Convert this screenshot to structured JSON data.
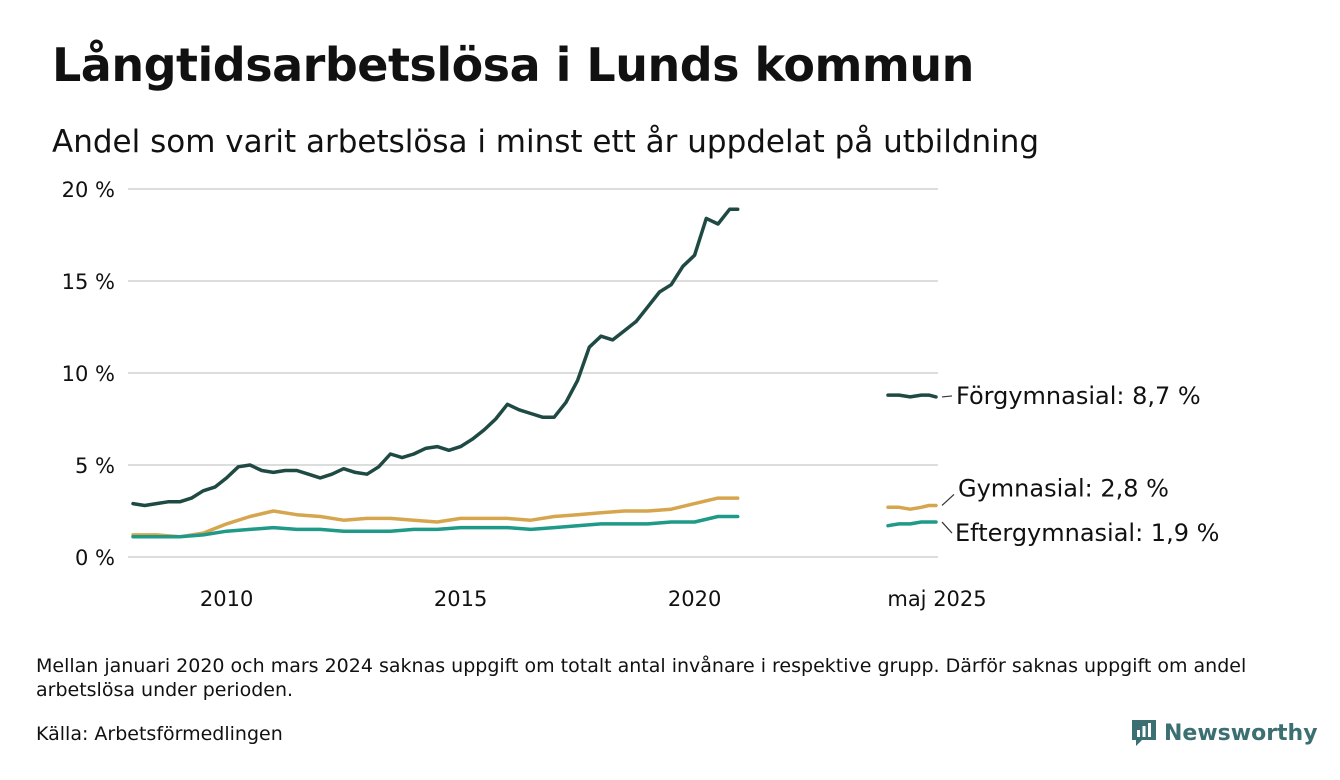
{
  "title": "Långtidsarbetslösa i Lunds kommun",
  "subtitle": "Andel som varit arbetslösa i minst ett år uppdelat på utbildning",
  "note": "Mellan januari 2020 och mars 2024 saknas uppgift om totalt antal invånare i respektive grupp. Därför saknas uppgift om andel arbetslösa under perioden.",
  "source": "Källa: Arbetsförmedlingen",
  "brand": "Newsworthy",
  "colors": {
    "forgymnasial": "#1f4a43",
    "gymnasial": "#d6a64f",
    "eftergymnasial": "#1f9a89",
    "grid": "#dddddd",
    "brand": "#3b6f72"
  },
  "chart_data": {
    "type": "line",
    "title": "Långtidsarbetslösa i Lunds kommun",
    "subtitle": "Andel som varit arbetslösa i minst ett år uppdelat på utbildning",
    "xlabel": "",
    "ylabel": "",
    "ylim": [
      0,
      20
    ],
    "yticks": [
      0,
      5,
      10,
      15,
      20
    ],
    "ytick_labels": [
      "0 %",
      "5 %",
      "10 %",
      "15 %",
      "20 %"
    ],
    "xticks": [
      2010,
      2015,
      2020
    ],
    "xtick_labels": [
      "2010",
      "2015",
      "2020"
    ],
    "late_tick_label": "maj 2025",
    "grid": true,
    "legend": "end-labels",
    "series": [
      {
        "name": "Förgymnasial",
        "end_label": "Förgymnasial: 8,7 %",
        "color": "#1f4a43",
        "segment1": {
          "x": [
            2008.0,
            2008.25,
            2008.5,
            2008.75,
            2009.0,
            2009.25,
            2009.5,
            2009.75,
            2010.0,
            2010.25,
            2010.5,
            2010.75,
            2011.0,
            2011.25,
            2011.5,
            2011.75,
            2012.0,
            2012.25,
            2012.5,
            2012.75,
            2013.0,
            2013.25,
            2013.5,
            2013.75,
            2014.0,
            2014.25,
            2014.5,
            2014.75,
            2015.0,
            2015.25,
            2015.5,
            2015.75,
            2016.0,
            2016.25,
            2016.5,
            2016.75,
            2017.0,
            2017.25,
            2017.5,
            2017.75,
            2018.0,
            2018.25,
            2018.5,
            2018.75,
            2019.0,
            2019.25,
            2019.5,
            2019.75,
            2020.0,
            2020.25,
            2020.5,
            2020.75,
            2020.92
          ],
          "y": [
            2.9,
            2.8,
            2.9,
            3.0,
            3.0,
            3.2,
            3.6,
            3.8,
            4.3,
            4.9,
            5.0,
            4.7,
            4.6,
            4.7,
            4.7,
            4.5,
            4.3,
            4.5,
            4.8,
            4.6,
            4.5,
            4.9,
            5.6,
            5.4,
            5.6,
            5.9,
            6.0,
            5.8,
            6.0,
            6.4,
            6.9,
            7.5,
            8.3,
            8.0,
            7.8,
            7.6,
            7.6,
            8.4,
            9.6,
            11.4,
            12.0,
            11.8,
            12.3,
            12.8,
            13.6,
            14.4,
            14.8,
            15.8,
            16.4,
            18.4,
            18.1,
            18.9,
            18.9
          ]
        },
        "segment2": {
          "x": [
            2024.25,
            2024.5,
            2024.75,
            2025.0,
            2025.17,
            2025.33
          ],
          "y": [
            8.8,
            8.8,
            8.7,
            8.8,
            8.8,
            8.7
          ]
        }
      },
      {
        "name": "Gymnasial",
        "end_label": "Gymnasial: 2,8 %",
        "color": "#d6a64f",
        "segment1": {
          "x": [
            2008.0,
            2008.5,
            2009.0,
            2009.5,
            2010.0,
            2010.5,
            2011.0,
            2011.5,
            2012.0,
            2012.5,
            2013.0,
            2013.5,
            2014.0,
            2014.5,
            2015.0,
            2015.5,
            2016.0,
            2016.5,
            2017.0,
            2017.5,
            2018.0,
            2018.5,
            2019.0,
            2019.5,
            2020.0,
            2020.5,
            2020.92
          ],
          "y": [
            1.2,
            1.2,
            1.1,
            1.3,
            1.8,
            2.2,
            2.5,
            2.3,
            2.2,
            2.0,
            2.1,
            2.1,
            2.0,
            1.9,
            2.1,
            2.1,
            2.1,
            2.0,
            2.2,
            2.3,
            2.4,
            2.5,
            2.5,
            2.6,
            2.9,
            3.2,
            3.2
          ]
        },
        "segment2": {
          "x": [
            2024.25,
            2024.5,
            2024.75,
            2025.0,
            2025.17,
            2025.33
          ],
          "y": [
            2.7,
            2.7,
            2.6,
            2.7,
            2.8,
            2.8
          ]
        }
      },
      {
        "name": "Eftergymnasial",
        "end_label": "Eftergymnasial: 1,9 %",
        "color": "#1f9a89",
        "segment1": {
          "x": [
            2008.0,
            2008.5,
            2009.0,
            2009.5,
            2010.0,
            2010.5,
            2011.0,
            2011.5,
            2012.0,
            2012.5,
            2013.0,
            2013.5,
            2014.0,
            2014.5,
            2015.0,
            2015.5,
            2016.0,
            2016.5,
            2017.0,
            2017.5,
            2018.0,
            2018.5,
            2019.0,
            2019.5,
            2020.0,
            2020.5,
            2020.92
          ],
          "y": [
            1.1,
            1.1,
            1.1,
            1.2,
            1.4,
            1.5,
            1.6,
            1.5,
            1.5,
            1.4,
            1.4,
            1.4,
            1.5,
            1.5,
            1.6,
            1.6,
            1.6,
            1.5,
            1.6,
            1.7,
            1.8,
            1.8,
            1.8,
            1.9,
            1.9,
            2.2,
            2.2
          ]
        },
        "segment2": {
          "x": [
            2024.25,
            2024.5,
            2024.75,
            2025.0,
            2025.17,
            2025.33
          ],
          "y": [
            1.7,
            1.8,
            1.8,
            1.9,
            1.9,
            1.9
          ]
        }
      }
    ]
  }
}
